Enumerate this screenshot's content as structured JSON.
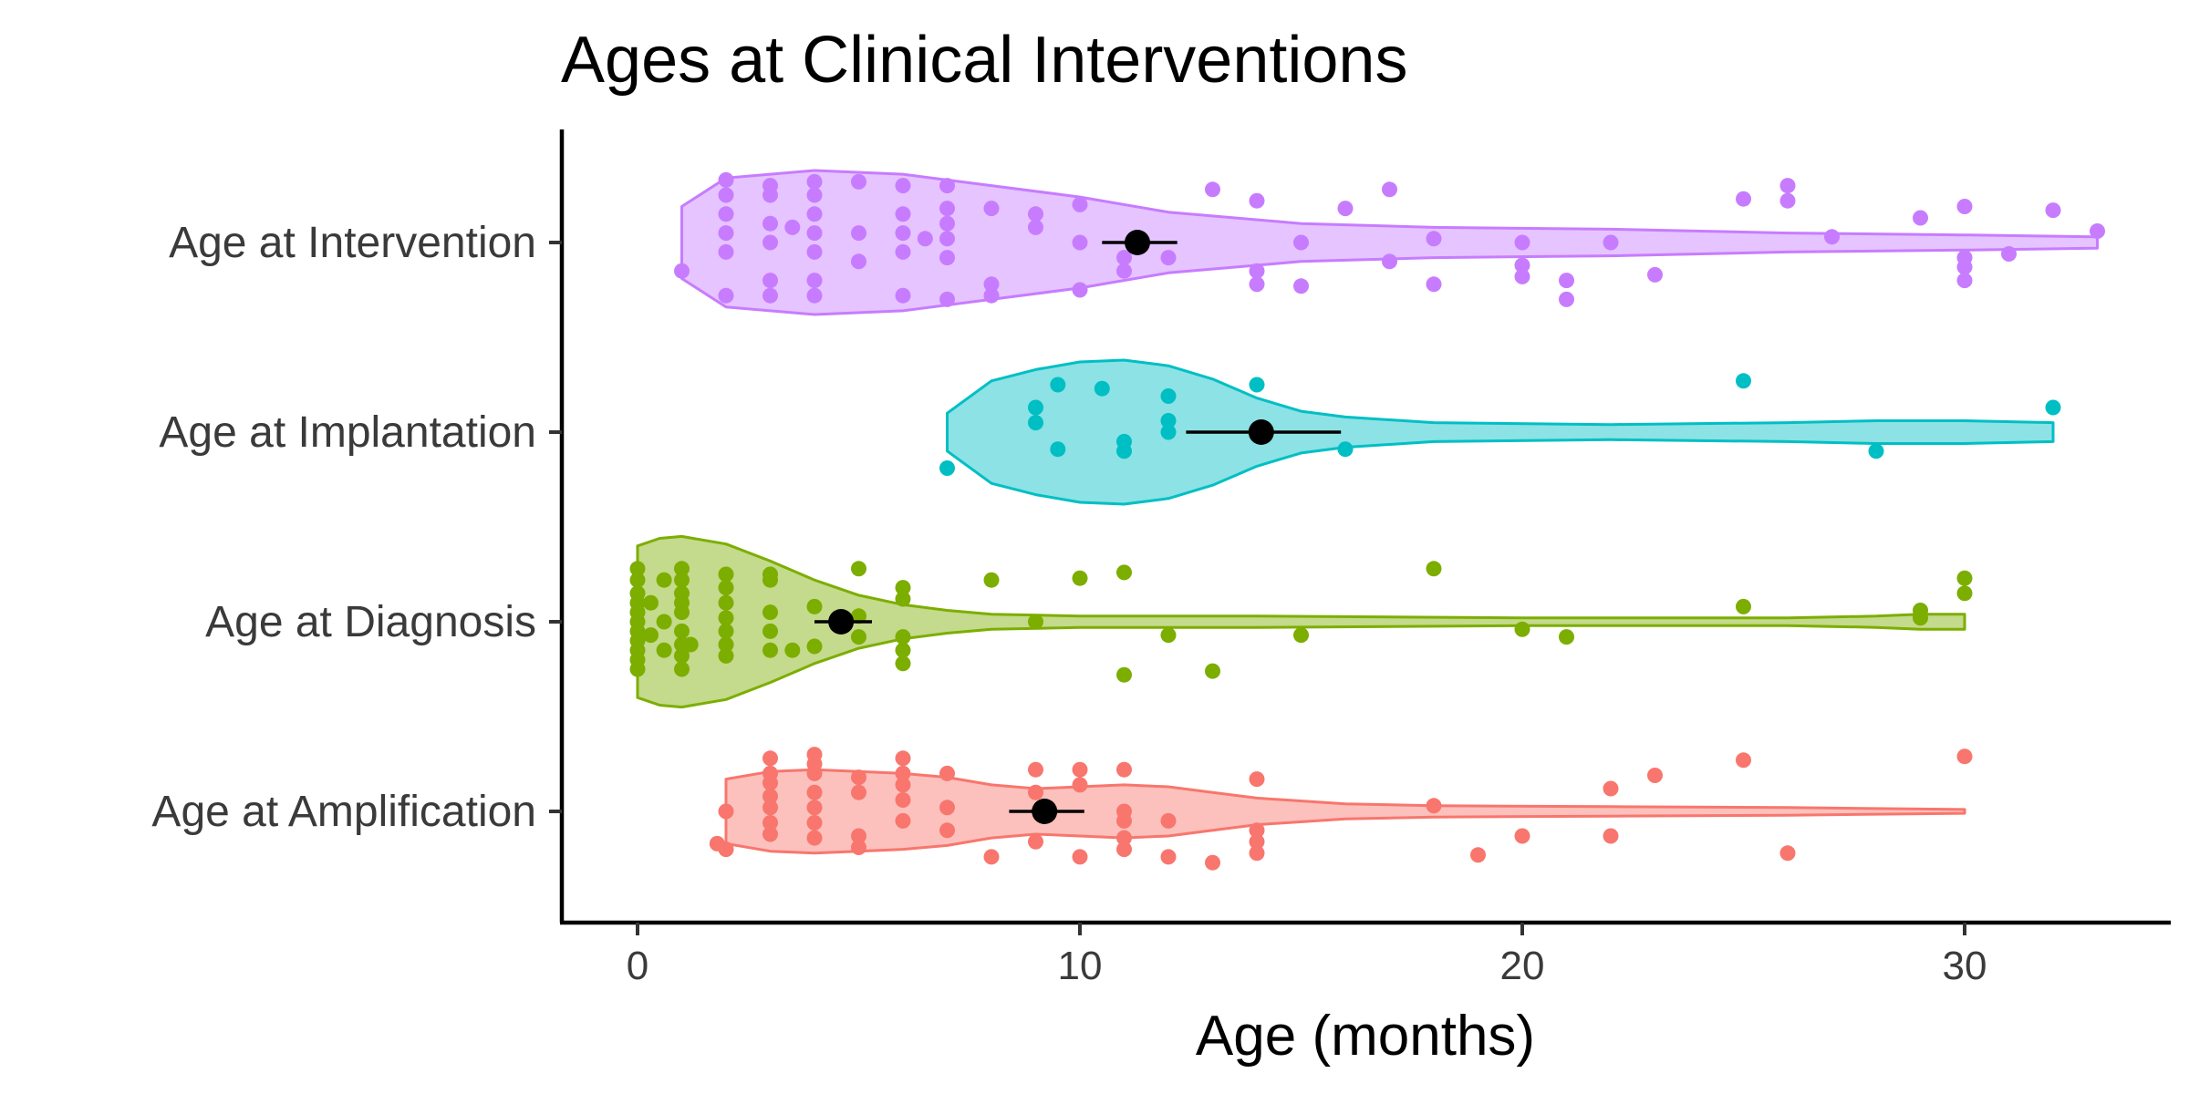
{
  "chart_data": {
    "type": "violin",
    "title": "Ages at Clinical Interventions",
    "xlabel": "Age (months)",
    "ylabel": "",
    "xlim": [
      -1.7,
      34.7
    ],
    "xticks": [
      0,
      10,
      20,
      30
    ],
    "grid": false,
    "legend": "none",
    "categories": [
      "Age at Intervention",
      "Age at Implantation",
      "Age at Diagnosis",
      "Age at Amplification"
    ],
    "series": [
      {
        "category": "Age at Intervention",
        "color": "#c77cff",
        "violin": {
          "x": [
            1,
            2,
            4,
            6,
            8,
            10,
            12,
            15,
            18,
            22,
            26,
            30,
            33
          ],
          "halfwidth": [
            0.19,
            0.34,
            0.38,
            0.36,
            0.3,
            0.24,
            0.16,
            0.1,
            0.08,
            0.07,
            0.05,
            0.04,
            0.03
          ]
        },
        "mean": 11.3,
        "ci": [
          10.5,
          12.2
        ],
        "points": [
          [
            2,
            0.33
          ],
          [
            2,
            0.25
          ],
          [
            2,
            0.15
          ],
          [
            2,
            0.05
          ],
          [
            2,
            -0.05
          ],
          [
            2,
            -0.28
          ],
          [
            1,
            -0.15
          ],
          [
            3,
            0.3
          ],
          [
            3,
            0.25
          ],
          [
            3,
            0.1
          ],
          [
            3,
            0.0
          ],
          [
            3,
            -0.2
          ],
          [
            3,
            -0.28
          ],
          [
            3.5,
            0.08
          ],
          [
            4,
            0.32
          ],
          [
            4,
            0.25
          ],
          [
            4,
            0.15
          ],
          [
            4,
            0.05
          ],
          [
            4,
            -0.05
          ],
          [
            4,
            -0.2
          ],
          [
            4,
            -0.28
          ],
          [
            5,
            0.32
          ],
          [
            5,
            0.05
          ],
          [
            5,
            -0.1
          ],
          [
            6,
            0.3
          ],
          [
            6,
            0.15
          ],
          [
            6,
            0.05
          ],
          [
            6,
            -0.05
          ],
          [
            6,
            -0.28
          ],
          [
            6.5,
            0.02
          ],
          [
            7,
            0.3
          ],
          [
            7,
            0.18
          ],
          [
            7,
            0.1
          ],
          [
            7,
            0.02
          ],
          [
            7,
            -0.08
          ],
          [
            7,
            -0.3
          ],
          [
            8,
            0.18
          ],
          [
            8,
            -0.22
          ],
          [
            8,
            -0.28
          ],
          [
            9,
            0.15
          ],
          [
            9,
            0.08
          ],
          [
            10,
            0.2
          ],
          [
            10,
            0.0
          ],
          [
            10,
            -0.25
          ],
          [
            11,
            -0.08
          ],
          [
            11,
            -0.15
          ],
          [
            12,
            -0.08
          ],
          [
            13,
            0.28
          ],
          [
            14,
            0.22
          ],
          [
            14,
            -0.15
          ],
          [
            14,
            -0.22
          ],
          [
            15,
            0.0
          ],
          [
            15,
            -0.23
          ],
          [
            16,
            0.18
          ],
          [
            17,
            0.28
          ],
          [
            17,
            -0.1
          ],
          [
            18,
            0.02
          ],
          [
            18,
            -0.22
          ],
          [
            20,
            0.0
          ],
          [
            20,
            -0.12
          ],
          [
            20,
            -0.18
          ],
          [
            21,
            -0.3
          ],
          [
            21,
            -0.2
          ],
          [
            22,
            0.0
          ],
          [
            23,
            -0.17
          ],
          [
            25,
            0.23
          ],
          [
            26,
            0.3
          ],
          [
            26,
            0.22
          ],
          [
            27,
            0.03
          ],
          [
            29,
            0.13
          ],
          [
            30,
            0.19
          ],
          [
            30,
            -0.08
          ],
          [
            30,
            -0.13
          ],
          [
            30,
            -0.2
          ],
          [
            31,
            -0.06
          ],
          [
            32,
            0.17
          ],
          [
            33,
            0.06
          ]
        ]
      },
      {
        "category": "Age at Implantation",
        "color": "#00bfc4",
        "violin": {
          "x": [
            7,
            8,
            9,
            10,
            11,
            12,
            13,
            14,
            15,
            16,
            18,
            22,
            26,
            28,
            30,
            32
          ],
          "halfwidth": [
            0.1,
            0.27,
            0.33,
            0.37,
            0.38,
            0.35,
            0.28,
            0.18,
            0.11,
            0.08,
            0.05,
            0.04,
            0.05,
            0.06,
            0.06,
            0.05
          ]
        },
        "mean": 14.1,
        "ci": [
          12.4,
          15.9
        ],
        "points": [
          [
            7,
            -0.19
          ],
          [
            9,
            0.13
          ],
          [
            9,
            0.05
          ],
          [
            9.5,
            0.25
          ],
          [
            9.5,
            -0.09
          ],
          [
            10.5,
            0.23
          ],
          [
            11,
            -0.05
          ],
          [
            11,
            -0.1
          ],
          [
            12,
            0.19
          ],
          [
            12,
            0.06
          ],
          [
            12,
            0.0
          ],
          [
            14,
            0.25
          ],
          [
            16,
            -0.09
          ],
          [
            25,
            0.27
          ],
          [
            28,
            -0.1
          ],
          [
            32,
            0.13
          ]
        ]
      },
      {
        "category": "Age at Diagnosis",
        "color": "#7cae00",
        "violin": {
          "x": [
            0,
            0.5,
            1,
            2,
            3,
            4,
            5,
            6,
            7,
            8,
            10,
            14,
            20,
            26,
            28,
            29,
            30
          ],
          "halfwidth": [
            0.4,
            0.44,
            0.45,
            0.41,
            0.32,
            0.22,
            0.14,
            0.09,
            0.06,
            0.04,
            0.03,
            0.03,
            0.02,
            0.02,
            0.03,
            0.04,
            0.04
          ]
        },
        "mean": 4.6,
        "ci": [
          4.0,
          5.3
        ],
        "points": [
          [
            0,
            0.28
          ],
          [
            0,
            0.22
          ],
          [
            0,
            0.15
          ],
          [
            0,
            0.1
          ],
          [
            0,
            0.05
          ],
          [
            0,
            0.0
          ],
          [
            0,
            -0.05
          ],
          [
            0,
            -0.1
          ],
          [
            0,
            -0.15
          ],
          [
            0,
            -0.2
          ],
          [
            0,
            -0.25
          ],
          [
            0.3,
            0.1
          ],
          [
            0.3,
            -0.07
          ],
          [
            0.6,
            0.22
          ],
          [
            0.6,
            0.0
          ],
          [
            0.6,
            -0.15
          ],
          [
            1,
            0.28
          ],
          [
            1,
            0.22
          ],
          [
            1,
            0.15
          ],
          [
            1,
            0.1
          ],
          [
            1,
            0.05
          ],
          [
            1,
            -0.05
          ],
          [
            1,
            -0.12
          ],
          [
            1,
            -0.18
          ],
          [
            1,
            -0.25
          ],
          [
            1.2,
            -0.12
          ],
          [
            2,
            0.25
          ],
          [
            2,
            0.18
          ],
          [
            2,
            0.1
          ],
          [
            2,
            0.02
          ],
          [
            2,
            -0.05
          ],
          [
            2,
            -0.12
          ],
          [
            2,
            -0.18
          ],
          [
            3,
            0.25
          ],
          [
            3,
            0.22
          ],
          [
            3,
            0.05
          ],
          [
            3,
            -0.05
          ],
          [
            3,
            -0.15
          ],
          [
            3.5,
            -0.15
          ],
          [
            4,
            0.08
          ],
          [
            4,
            -0.13
          ],
          [
            5,
            0.28
          ],
          [
            5,
            0.03
          ],
          [
            5,
            -0.08
          ],
          [
            6,
            0.18
          ],
          [
            6,
            0.12
          ],
          [
            6,
            -0.08
          ],
          [
            6,
            -0.15
          ],
          [
            6,
            -0.22
          ],
          [
            8,
            0.22
          ],
          [
            9,
            0.0
          ],
          [
            10,
            0.23
          ],
          [
            11,
            0.26
          ],
          [
            11,
            -0.28
          ],
          [
            12,
            -0.07
          ],
          [
            13,
            -0.26
          ],
          [
            15,
            -0.07
          ],
          [
            18,
            0.28
          ],
          [
            20,
            -0.04
          ],
          [
            21,
            -0.08
          ],
          [
            25,
            0.08
          ],
          [
            29,
            0.06
          ],
          [
            29,
            0.02
          ],
          [
            30,
            0.23
          ],
          [
            30,
            0.15
          ]
        ]
      },
      {
        "category": "Age at Amplification",
        "color": "#f8766d",
        "violin": {
          "x": [
            2,
            3,
            4,
            5,
            6,
            7,
            8,
            9,
            10,
            11,
            12,
            13,
            14,
            16,
            18,
            22,
            26,
            28,
            30
          ],
          "halfwidth": [
            0.17,
            0.21,
            0.22,
            0.21,
            0.2,
            0.18,
            0.14,
            0.12,
            0.13,
            0.14,
            0.13,
            0.1,
            0.07,
            0.04,
            0.03,
            0.025,
            0.02,
            0.015,
            0.01
          ]
        },
        "mean": 9.2,
        "ci": [
          8.4,
          10.1
        ],
        "points": [
          [
            1.8,
            -0.17
          ],
          [
            2,
            0.0
          ],
          [
            2,
            -0.2
          ],
          [
            3,
            0.28
          ],
          [
            3,
            0.2
          ],
          [
            3,
            0.15
          ],
          [
            3,
            0.08
          ],
          [
            3,
            0.02
          ],
          [
            3,
            -0.06
          ],
          [
            3,
            -0.12
          ],
          [
            4,
            0.3
          ],
          [
            4,
            0.25
          ],
          [
            4,
            0.2
          ],
          [
            4,
            0.1
          ],
          [
            4,
            0.02
          ],
          [
            4,
            -0.06
          ],
          [
            4,
            -0.14
          ],
          [
            5,
            0.18
          ],
          [
            5,
            0.1
          ],
          [
            5,
            -0.13
          ],
          [
            5,
            -0.19
          ],
          [
            6,
            0.28
          ],
          [
            6,
            0.2
          ],
          [
            6,
            0.14
          ],
          [
            6,
            0.06
          ],
          [
            6,
            -0.05
          ],
          [
            7,
            0.2
          ],
          [
            7,
            0.02
          ],
          [
            7,
            -0.1
          ],
          [
            8,
            -0.24
          ],
          [
            9,
            0.22
          ],
          [
            9,
            0.1
          ],
          [
            9,
            -0.16
          ],
          [
            10,
            0.22
          ],
          [
            10,
            0.14
          ],
          [
            10,
            -0.24
          ],
          [
            11,
            0.22
          ],
          [
            11,
            0.0
          ],
          [
            11,
            -0.05
          ],
          [
            11,
            -0.14
          ],
          [
            11,
            -0.2
          ],
          [
            12,
            -0.05
          ],
          [
            12,
            -0.24
          ],
          [
            13,
            -0.27
          ],
          [
            14,
            0.17
          ],
          [
            14,
            -0.1
          ],
          [
            14,
            -0.16
          ],
          [
            14,
            -0.22
          ],
          [
            18,
            0.03
          ],
          [
            19,
            -0.23
          ],
          [
            20,
            -0.13
          ],
          [
            22,
            0.12
          ],
          [
            22,
            -0.13
          ],
          [
            23,
            0.19
          ],
          [
            25,
            0.27
          ],
          [
            26,
            -0.22
          ],
          [
            30,
            0.29
          ]
        ]
      }
    ]
  }
}
